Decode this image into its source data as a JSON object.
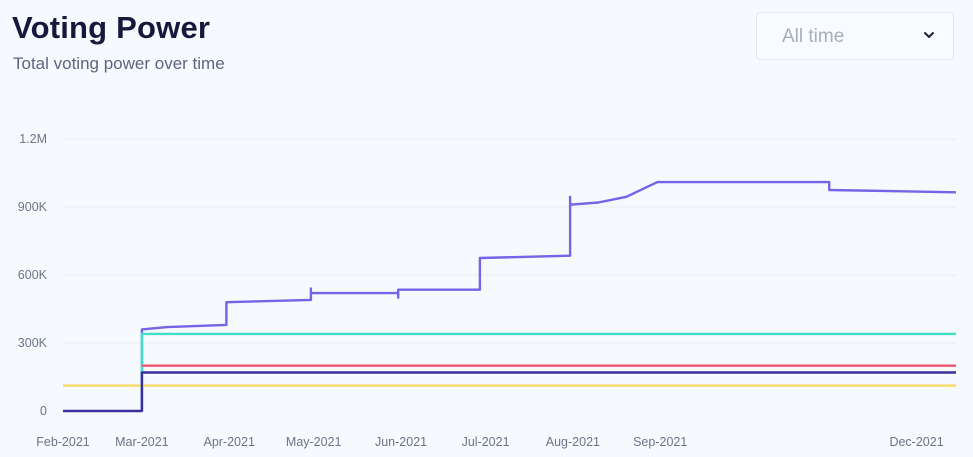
{
  "header": {
    "title": "Voting Power",
    "subtitle": "Total voting power over time"
  },
  "range_select": {
    "value": "All time",
    "icon": "chevron-down-icon"
  },
  "chart_data": {
    "type": "line",
    "title": "Voting Power",
    "subtitle": "Total voting power over time",
    "xlabel": "",
    "ylabel": "",
    "ylim": [
      0,
      1200000
    ],
    "y_ticks": [
      0,
      300000,
      600000,
      900000,
      1200000
    ],
    "y_tick_labels": [
      "0",
      "300K",
      "600K",
      "900K",
      "1.2M"
    ],
    "x_range": [
      "2021-02-01",
      "2021-12-15"
    ],
    "x_ticks": [
      "2021-02-01",
      "2021-03-01",
      "2021-04-01",
      "2021-05-01",
      "2021-06-01",
      "2021-07-01",
      "2021-08-01",
      "2021-09-01",
      "2021-12-01"
    ],
    "x_tick_labels": [
      "Feb-2021",
      "Mar-2021",
      "Apr-2021",
      "May-2021",
      "Jun-2021",
      "Jul-2021",
      "Aug-2021",
      "Sep-2021",
      "Dec-2021"
    ],
    "grid": true,
    "legend": "none",
    "series": [
      {
        "color": "#7563e8",
        "points": [
          [
            "2021-03-01",
            0
          ],
          [
            "2021-03-01",
            360000
          ],
          [
            "2021-03-10",
            370000
          ],
          [
            "2021-03-31",
            380000
          ],
          [
            "2021-03-31",
            480000
          ],
          [
            "2021-04-30",
            490000
          ],
          [
            "2021-04-30",
            540000
          ],
          [
            "2021-04-30",
            520000
          ],
          [
            "2021-05-31",
            520000
          ],
          [
            "2021-05-31",
            500000
          ],
          [
            "2021-05-31",
            535000
          ],
          [
            "2021-06-29",
            535000
          ],
          [
            "2021-06-29",
            675000
          ],
          [
            "2021-07-31",
            685000
          ],
          [
            "2021-07-31",
            945000
          ],
          [
            "2021-07-31",
            910000
          ],
          [
            "2021-08-10",
            920000
          ],
          [
            "2021-08-20",
            945000
          ],
          [
            "2021-08-31",
            1010000
          ],
          [
            "2021-10-31",
            1010000
          ],
          [
            "2021-10-31",
            975000
          ],
          [
            "2021-12-15",
            965000
          ]
        ]
      },
      {
        "color": "#40e0c8",
        "points": [
          [
            "2021-03-01",
            0
          ],
          [
            "2021-03-01",
            340000
          ],
          [
            "2021-12-15",
            340000
          ]
        ]
      },
      {
        "color": "#f0556e",
        "points": [
          [
            "2021-03-01",
            200000
          ],
          [
            "2021-12-15",
            200000
          ]
        ]
      },
      {
        "color": "#f7dc6a",
        "points": [
          [
            "2021-02-01",
            112000
          ],
          [
            "2021-12-15",
            112000
          ]
        ]
      },
      {
        "color": "#3b2f9e",
        "points": [
          [
            "2021-02-01",
            0
          ],
          [
            "2021-03-01",
            0
          ],
          [
            "2021-03-01",
            170000
          ],
          [
            "2021-12-15",
            170000
          ]
        ]
      }
    ]
  },
  "colors": {
    "grid": "#e9edf4",
    "tick_text": "#6d7389"
  }
}
